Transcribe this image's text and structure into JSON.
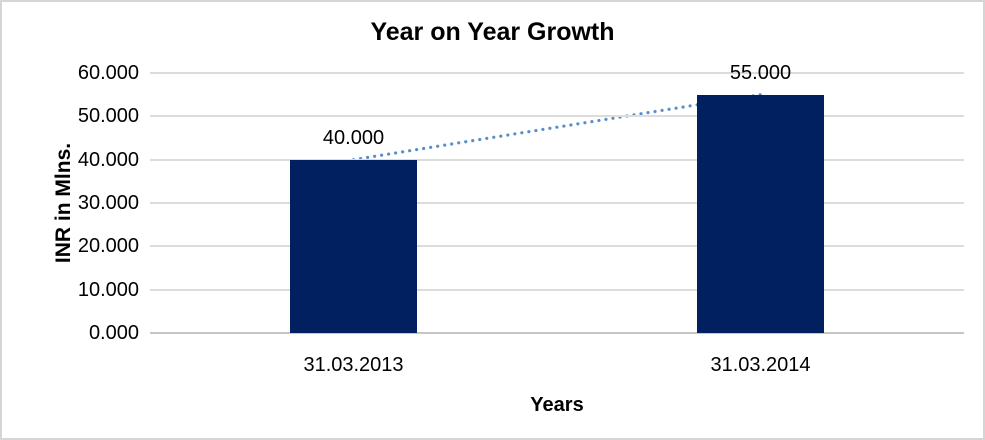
{
  "chart_data": {
    "type": "bar",
    "title": "Year on Year Growth",
    "xlabel": "Years",
    "ylabel": "INR in Mlns.",
    "categories": [
      "31.03.2013",
      "31.03.2014"
    ],
    "values": [
      40,
      55
    ],
    "data_labels": [
      "40.000",
      "55.000"
    ],
    "ylim": [
      0,
      60
    ],
    "yticks": [
      0,
      10,
      20,
      30,
      40,
      50,
      60
    ],
    "ytick_labels": [
      "0.000",
      "10.000",
      "20.000",
      "30.000",
      "40.000",
      "50.000",
      "60.000"
    ],
    "grid": true,
    "legend": false,
    "trendline": {
      "style": "dotted",
      "from_value": 40,
      "to_value": 55
    },
    "colors": {
      "bar": "#002060",
      "trendline": "#5b8ec9",
      "gridline": "#dcdcdc",
      "axis_line": "#c6c6c6",
      "text": "#000000",
      "frame_border": "#d5d5d5",
      "background": "#ffffff"
    }
  }
}
